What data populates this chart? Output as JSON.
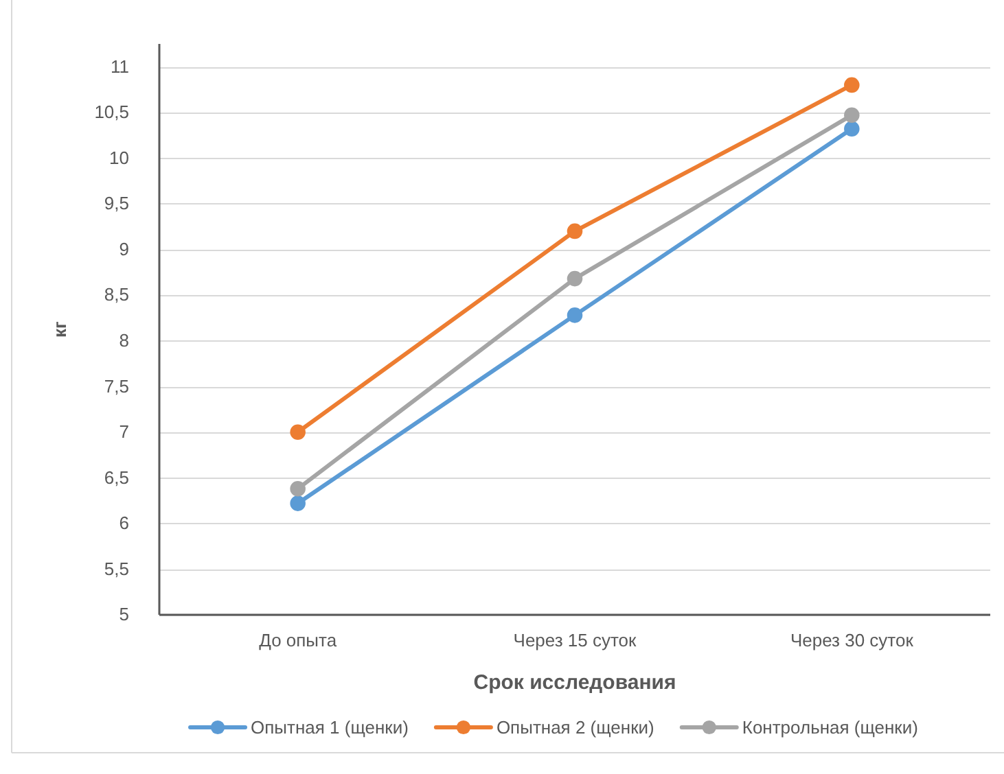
{
  "chart_data": {
    "type": "line",
    "xlabel": "Срок исследования",
    "ylabel": "кг",
    "categories": [
      "До опыта",
      "Через 15 суток",
      "Через 30 суток"
    ],
    "series": [
      {
        "name": "Опытная 1 (щенки)",
        "color": "#5b9bd5",
        "values": [
          6.22,
          8.28,
          10.32
        ]
      },
      {
        "name": "Опытная 2 (щенки)",
        "color": "#ed7d31",
        "values": [
          7.0,
          9.2,
          10.8
        ]
      },
      {
        "name": "Контрольная (щенки)",
        "color": "#a5a5a5",
        "values": [
          6.38,
          8.68,
          10.47
        ]
      }
    ],
    "ylim": [
      5,
      11.25
    ],
    "yticks": [
      5,
      {
        "value": 5.5,
        "label": "5,5"
      },
      6,
      {
        "value": 6.5,
        "label": "6,5"
      },
      7,
      {
        "value": 7.5,
        "label": "7,5"
      },
      8,
      {
        "value": 8.5,
        "label": "8,5"
      },
      9,
      {
        "value": 9.5,
        "label": "9,5"
      },
      10,
      {
        "value": 10.5,
        "label": "10,5"
      },
      11
    ],
    "grid": "y",
    "legend": "bottom",
    "marker": "circle",
    "line_style": "solid"
  }
}
